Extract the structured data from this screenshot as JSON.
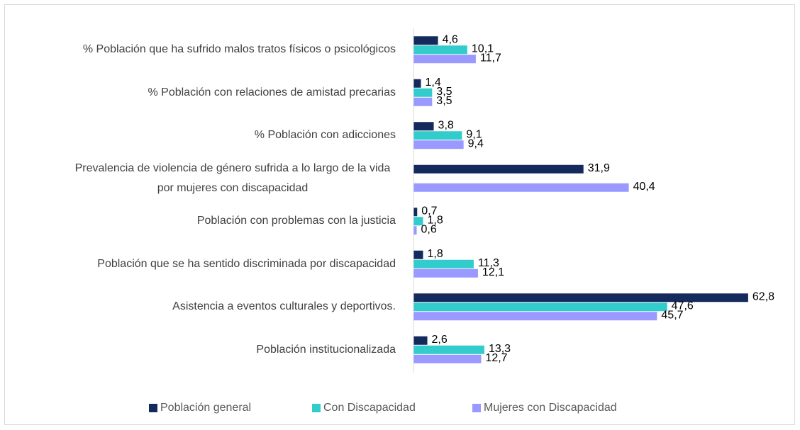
{
  "chart_data": {
    "type": "bar",
    "orientation": "horizontal",
    "categories": [
      "% Población que ha sufrido malos tratos físicos o psicológicos",
      "% Población con relaciones de amistad precarias",
      "% Población con adicciones",
      "Prevalencia de violencia de género sufrida a lo largo de la vida por mujeres con discapacidad",
      "Población con problemas con la justicia",
      "Población que se ha sentido discriminada por discapacidad",
      "Asistencia a eventos culturales y deportivos.",
      "Población institucionalizada"
    ],
    "series": [
      {
        "name": "Población general",
        "color": "#142a5c",
        "values": [
          4.6,
          1.4,
          3.8,
          31.9,
          0.7,
          1.8,
          62.8,
          2.6
        ],
        "value_labels": [
          "4,6",
          "1,4",
          "3,8",
          "31,9",
          "0,7",
          "1,8",
          "62,8",
          "2,6"
        ]
      },
      {
        "name": "Con Discapacidad",
        "color": "#33cccc",
        "values": [
          10.1,
          3.5,
          9.1,
          null,
          1.8,
          11.3,
          47.6,
          13.3
        ],
        "value_labels": [
          "10,1",
          "3,5",
          "9,1",
          null,
          "1,8",
          "11,3",
          "47,6",
          "13,3"
        ]
      },
      {
        "name": "Mujeres con Discapacidad",
        "color": "#9999ff",
        "values": [
          11.7,
          3.5,
          9.4,
          40.4,
          0.6,
          12.1,
          45.7,
          12.7
        ],
        "value_labels": [
          "11,7",
          "3,5",
          "9,4",
          "40,4",
          "0,6",
          "12,1",
          "45,7",
          "12,7"
        ]
      }
    ],
    "xlim": [
      0,
      70
    ],
    "legend": "bottom"
  }
}
